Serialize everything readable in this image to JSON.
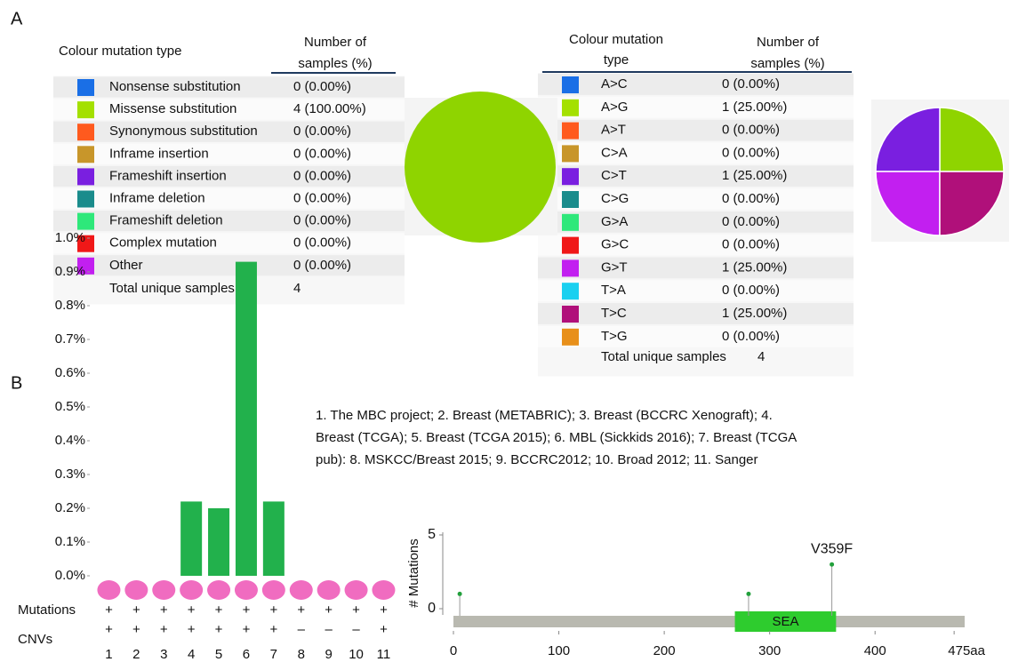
{
  "panel_labels": [
    "A",
    "B"
  ],
  "tables": [
    {
      "headers": [
        [
          "Colour mutation type"
        ],
        [
          "Number of",
          "samples (%)"
        ]
      ],
      "rows": [
        {
          "color": "#1a6fe6",
          "label": "Nonsense substitution",
          "value": "0 (0.00%)"
        },
        {
          "color": "#a4e000",
          "label": "Missense substitution",
          "value": "4 (100.00%)",
          "link": true
        },
        {
          "color": "#ff5a1e",
          "label": "Synonymous substitution",
          "value": "0 (0.00%)"
        },
        {
          "color": "#c8962a",
          "label": "Inframe insertion",
          "value": "0 (0.00%)"
        },
        {
          "color": "#7a1fe0",
          "label": "Frameshift insertion",
          "value": "0 (0.00%)"
        },
        {
          "color": "#1a8c8c",
          "label": "Inframe deletion",
          "value": "0 (0.00%)"
        },
        {
          "color": "#2ee87a",
          "label": "Frameshift deletion",
          "value": "0 (0.00%)"
        },
        {
          "color": "#f01818",
          "label": "Complex mutation",
          "value": "0 (0.00%)"
        },
        {
          "color": "#c21ff0",
          "label": "Other",
          "value": "0 (0.00%)"
        }
      ],
      "total": {
        "label": "Total unique samples",
        "value": "4"
      }
    },
    {
      "headers": [
        [
          "Colour mutation",
          "type"
        ],
        [
          "Number of",
          "samples (%)"
        ]
      ],
      "rows": [
        {
          "color": "#1a6fe6",
          "label": "A>C",
          "value": "0 (0.00%)"
        },
        {
          "color": "#a4e000",
          "label": "A>G",
          "value": "1 (25.00%)",
          "link": true
        },
        {
          "color": "#ff5a1e",
          "label": "A>T",
          "value": "0 (0.00%)"
        },
        {
          "color": "#c8962a",
          "label": "C>A",
          "value": "0 (0.00%)"
        },
        {
          "color": "#7a1fe0",
          "label": "C>T",
          "value": "1 (25.00%)",
          "link": true
        },
        {
          "color": "#1a8c8c",
          "label": "C>G",
          "value": "0 (0.00%)"
        },
        {
          "color": "#2ee87a",
          "label": "G>A",
          "value": "0 (0.00%)"
        },
        {
          "color": "#f01818",
          "label": "G>C",
          "value": "0 (0.00%)"
        },
        {
          "color": "#c21ff0",
          "label": "G>T",
          "value": "1 (25.00%)",
          "link": true
        },
        {
          "color": "#1ad0f0",
          "label": "T>A",
          "value": "0 (0.00%)"
        },
        {
          "color": "#b0107a",
          "label": "T>C",
          "value": "1 (25.00%)",
          "link": true
        },
        {
          "color": "#e8901a",
          "label": "T>G",
          "value": "0 (0.00%)"
        }
      ],
      "total": {
        "label": "Total unique samples",
        "value": "4"
      }
    }
  ],
  "chart_data": [
    {
      "type": "pie",
      "values": [
        0,
        100,
        0,
        0,
        0,
        0,
        0,
        0,
        0
      ],
      "colors": [
        "#1a6fe6",
        "#8fd400",
        "#ff5a1e",
        "#c8962a",
        "#7a1fe0",
        "#1a8c8c",
        "#2ee87a",
        "#f01818",
        "#c21ff0"
      ]
    },
    {
      "type": "pie",
      "values": [
        0,
        25,
        0,
        0,
        25,
        0,
        0,
        0,
        25,
        0,
        25,
        0
      ],
      "colors": [
        "#1a6fe6",
        "#8fd400",
        "#ff5a1e",
        "#c8962a",
        "#7a1fe0",
        "#1a8c8c",
        "#2ee87a",
        "#f01818",
        "#c21ff0",
        "#1ad0f0",
        "#b0107a",
        "#e8901a"
      ]
    },
    {
      "type": "bar",
      "categories": [
        "1",
        "2",
        "3",
        "4",
        "5",
        "6",
        "7",
        "8",
        "9",
        "10",
        "11"
      ],
      "values": [
        0,
        0,
        0,
        0.22,
        0.2,
        0.93,
        0.22,
        0,
        0,
        0,
        0
      ],
      "color": "#22b14c",
      "ylim": [
        0,
        1
      ],
      "yticks": [
        {
          "value": 0,
          "label": "0.0%"
        },
        {
          "value": 0.1,
          "label": "0.1%"
        },
        {
          "value": 0.2,
          "label": "0.2%"
        },
        {
          "value": 0.3,
          "label": "0.3%"
        },
        {
          "value": 0.4,
          "label": "0.4%"
        },
        {
          "value": 0.5,
          "label": "0.5%"
        },
        {
          "value": 0.6,
          "label": "0.6%"
        },
        {
          "value": 0.7,
          "label": "0.7%"
        },
        {
          "value": 0.8,
          "label": "0.8%"
        },
        {
          "value": 0.9,
          "label": "0.9%"
        },
        {
          "value": 1,
          "label": "1.0%"
        }
      ],
      "rows": [
        {
          "name": "Mutations",
          "marks": [
            "+",
            "+",
            "+",
            "+",
            "+",
            "+",
            "+",
            "+",
            "+",
            "+",
            "+"
          ]
        },
        {
          "name": "CNVs",
          "marks": [
            "+",
            "+",
            "+",
            "+",
            "+",
            "+",
            "+",
            "–",
            "–",
            "–",
            "+"
          ]
        }
      ],
      "annotation": "1. The MBC project; 2. Breast (METABRIC); 3. Breast (BCCRC Xenograft); 4. Breast (TCGA); 5. Breast (TCGA 2015); 6. MBL (Sickkids 2016); 7. Breast (TCGA pub): 8. MSKCC/Breast 2015; 9. BCCRC2012; 10. Broad 2012; 11. Sanger"
    },
    {
      "type": "lollipop",
      "y_label": "# Mutations",
      "x": [
        6,
        280,
        359
      ],
      "values": [
        1,
        1,
        3
      ],
      "point_labels": [
        null,
        null,
        "V359F"
      ],
      "color": "#22a03c",
      "xlim": [
        0,
        485
      ],
      "xticks": [
        0,
        100,
        200,
        300,
        400,
        {
          "value": 475,
          "label": "475aa"
        }
      ],
      "ylim": [
        0,
        5
      ],
      "yticks": [
        0,
        5
      ],
      "domains": [
        {
          "label": "SEA",
          "start": 267,
          "end": 363,
          "color": "#2ecc2e"
        }
      ]
    }
  ]
}
